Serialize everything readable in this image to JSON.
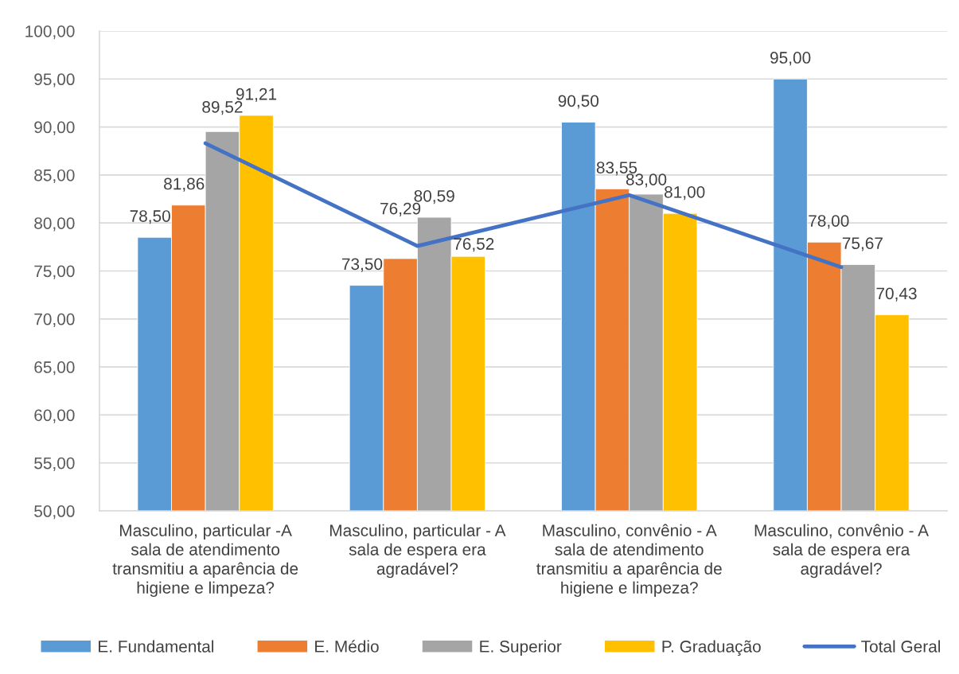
{
  "chart_data": {
    "type": "bar",
    "categories": [
      "Masculino, particular -A sala de atendimento transmitiu a aparência de higiene e limpeza?",
      "Masculino, particular - A sala de espera era agradável?",
      "Masculino, convênio - A sala de atendimento transmitiu a aparência de higiene e limpeza?",
      "Masculino, convênio - A sala de espera era agradável?"
    ],
    "series": [
      {
        "name": "E. Fundamental",
        "color": "#5b9bd5",
        "values": [
          78.5,
          73.5,
          90.5,
          95.0
        ],
        "value_labels": [
          "78,50",
          "73,50",
          "90,50",
          "95,00"
        ]
      },
      {
        "name": "E. Médio",
        "color": "#ed7d31",
        "values": [
          81.86,
          76.29,
          83.55,
          78.0
        ],
        "value_labels": [
          "81,86",
          "76,29",
          "83,55",
          "78,00"
        ]
      },
      {
        "name": "E. Superior",
        "color": "#a5a5a5",
        "values": [
          89.52,
          80.59,
          83.0,
          75.67
        ],
        "value_labels": [
          "89,52",
          "80,59",
          "83,00",
          "75,67"
        ]
      },
      {
        "name": "P. Graduação",
        "color": "#ffc000",
        "values": [
          91.21,
          76.52,
          81.0,
          70.43
        ],
        "value_labels": [
          "91,21",
          "76,52",
          "81,00",
          "70,43"
        ]
      },
      {
        "name": "Total Geral",
        "type": "line",
        "color": "#4472c4",
        "values": [
          88.3,
          77.6,
          82.9,
          75.4
        ]
      }
    ],
    "ylim": [
      50,
      100
    ],
    "yticks": [
      {
        "value": 50,
        "label": "50,00"
      },
      {
        "value": 55,
        "label": "55,00"
      },
      {
        "value": 60,
        "label": "60,00"
      },
      {
        "value": 65,
        "label": "65,00"
      },
      {
        "value": 70,
        "label": "70,00"
      },
      {
        "value": 75,
        "label": "75,00"
      },
      {
        "value": 80,
        "label": "80,00"
      },
      {
        "value": 85,
        "label": "85,00"
      },
      {
        "value": 90,
        "label": "90,00"
      },
      {
        "value": 95,
        "label": "95,00"
      },
      {
        "value": 100,
        "label": "100,00"
      }
    ],
    "grid": "y",
    "legend": "bottom"
  }
}
